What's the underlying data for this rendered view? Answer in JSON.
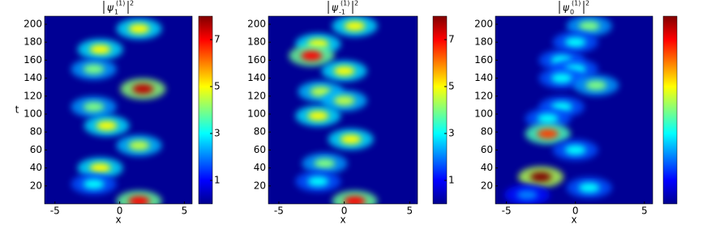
{
  "chart_data": [
    {
      "type": "heatmap",
      "title": {
        "symbol": "ψ",
        "sub": "1",
        "sup": "(1)",
        "power": "2"
      },
      "xlabel": "x",
      "ylabel": "t",
      "xlim": [
        -5.8,
        5.6
      ],
      "ylim": [
        0,
        209
      ],
      "xticks": [
        -5,
        0,
        5
      ],
      "yticks": [
        20,
        40,
        60,
        80,
        100,
        120,
        140,
        160,
        180,
        200
      ],
      "clim": [
        0,
        8
      ],
      "cticks": [
        1,
        3,
        5,
        7
      ],
      "blobs": [
        {
          "x": 1.5,
          "t": 195,
          "value": 5
        },
        {
          "x": -1.5,
          "t": 172,
          "value": 5
        },
        {
          "x": -2,
          "t": 150,
          "value": 4
        },
        {
          "x": 1.8,
          "t": 128,
          "value": 7.5
        },
        {
          "x": -2,
          "t": 108,
          "value": 4
        },
        {
          "x": -1,
          "t": 87,
          "value": 5
        },
        {
          "x": 1.5,
          "t": 65,
          "value": 4.5
        },
        {
          "x": -1.5,
          "t": 40,
          "value": 5
        },
        {
          "x": -2,
          "t": 22,
          "value": 3
        },
        {
          "x": 1.5,
          "t": 3,
          "value": 7
        }
      ]
    },
    {
      "type": "heatmap",
      "title": {
        "symbol": "ψ",
        "sub": "-1",
        "sup": "(1)",
        "power": "2"
      },
      "xlabel": "x",
      "xlim": [
        -5.8,
        5.6
      ],
      "ylim": [
        0,
        209
      ],
      "xticks": [
        -5,
        0,
        5
      ],
      "yticks": [
        20,
        40,
        60,
        80,
        100,
        120,
        140,
        160,
        180,
        200
      ],
      "clim": [
        0,
        8
      ],
      "cticks": [
        1,
        3,
        5,
        7
      ],
      "blobs": [
        {
          "x": 0.8,
          "t": 198,
          "value": 5
        },
        {
          "x": -2,
          "t": 178,
          "value": 5
        },
        {
          "x": -2.5,
          "t": 165,
          "value": 7
        },
        {
          "x": 0,
          "t": 148,
          "value": 5
        },
        {
          "x": -1.8,
          "t": 125,
          "value": 4.5
        },
        {
          "x": 0,
          "t": 115,
          "value": 4.5
        },
        {
          "x": -2,
          "t": 98,
          "value": 5
        },
        {
          "x": 0.5,
          "t": 72,
          "value": 5
        },
        {
          "x": -1.5,
          "t": 45,
          "value": 4
        },
        {
          "x": -2,
          "t": 25,
          "value": 3
        },
        {
          "x": 0.8,
          "t": 3,
          "value": 7
        }
      ]
    },
    {
      "type": "heatmap",
      "title": {
        "symbol": "ψ",
        "sub": "0",
        "sup": "(1)",
        "power": "2"
      },
      "xlabel": "x",
      "xlim": [
        -5.8,
        5.6
      ],
      "ylim": [
        0,
        209
      ],
      "xticks": [
        -5,
        0,
        5
      ],
      "yticks": [
        20,
        40,
        60,
        80,
        100,
        120,
        140,
        160,
        180,
        200
      ],
      "clim": [
        0,
        8
      ],
      "blobs": [
        {
          "x": 1,
          "t": 198,
          "value": 4
        },
        {
          "x": 0,
          "t": 180,
          "value": 3
        },
        {
          "x": -1,
          "t": 160,
          "value": 3
        },
        {
          "x": 0,
          "t": 150,
          "value": 3
        },
        {
          "x": -1,
          "t": 140,
          "value": 3
        },
        {
          "x": 1.5,
          "t": 132,
          "value": 4
        },
        {
          "x": -1,
          "t": 108,
          "value": 3
        },
        {
          "x": -2,
          "t": 95,
          "value": 3
        },
        {
          "x": -2,
          "t": 78,
          "value": 6.5
        },
        {
          "x": 0,
          "t": 60,
          "value": 3
        },
        {
          "x": -2.5,
          "t": 30,
          "value": 8
        },
        {
          "x": 1,
          "t": 18,
          "value": 3
        },
        {
          "x": -3.5,
          "t": 10,
          "value": 2
        }
      ]
    }
  ]
}
